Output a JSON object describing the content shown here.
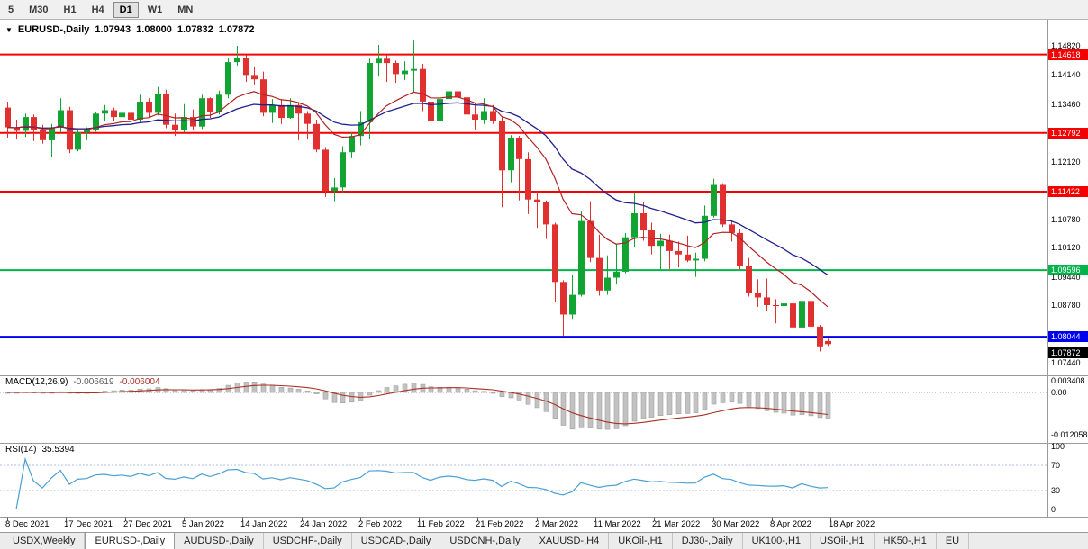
{
  "toolbar": {
    "timeframes": [
      {
        "label": "5",
        "active": false
      },
      {
        "label": "M30",
        "active": false
      },
      {
        "label": "H1",
        "active": false
      },
      {
        "label": "H4",
        "active": false
      },
      {
        "label": "D1",
        "active": true
      },
      {
        "label": "W1",
        "active": false
      },
      {
        "label": "MN",
        "active": false
      }
    ]
  },
  "chart_header": {
    "menu_icon": "▼",
    "title": "EURUSD-,Daily",
    "open": "1.07943",
    "high": "1.08000",
    "low": "1.07832",
    "close": "1.07872"
  },
  "chart_data": {
    "type": "candlestick",
    "symbol": "EURUSD-",
    "timeframe": "Daily",
    "price_range": {
      "top": 1.1505,
      "bottom": 1.0725
    },
    "price_axis": [
      {
        "text": "1.14820",
        "price": 1.1482,
        "style": "plain"
      },
      {
        "text": "1.14618",
        "price": 1.14618,
        "style": "red"
      },
      {
        "text": "1.14140",
        "price": 1.1414,
        "style": "plain"
      },
      {
        "text": "1.13460",
        "price": 1.1346,
        "style": "plain"
      },
      {
        "text": "1.12792",
        "price": 1.12792,
        "style": "red"
      },
      {
        "text": "1.12120",
        "price": 1.1212,
        "style": "plain"
      },
      {
        "text": "1.11422",
        "price": 1.11422,
        "style": "red"
      },
      {
        "text": "1.10780",
        "price": 1.1078,
        "style": "plain"
      },
      {
        "text": "1.10120",
        "price": 1.1012,
        "style": "plain"
      },
      {
        "text": "1.09596",
        "price": 1.09596,
        "style": "green"
      },
      {
        "text": "1.09440",
        "price": 1.0944,
        "style": "plain"
      },
      {
        "text": "1.08780",
        "price": 1.0878,
        "style": "plain"
      },
      {
        "text": "1.08044",
        "price": 1.08044,
        "style": "blue"
      },
      {
        "text": "1.07440",
        "price": 1.0744,
        "style": "plain"
      }
    ],
    "levels": [
      {
        "price": 1.14618,
        "color": "red"
      },
      {
        "price": 1.12792,
        "color": "red"
      },
      {
        "price": 1.11422,
        "color": "red"
      },
      {
        "price": 1.09596,
        "color": "green"
      },
      {
        "price": 1.08044,
        "color": "blue"
      }
    ],
    "current_price": {
      "text": "1.07872",
      "price": 1.07872
    },
    "moving_averages": [
      {
        "period": 12,
        "method": "ema",
        "color_key": "ma_fast"
      },
      {
        "period": 26,
        "method": "ema",
        "color_key": "ma_slow"
      }
    ],
    "date_labels": [
      "8 Dec 2021",
      "17 Dec 2021",
      "27 Dec 2021",
      "5 Jan 2022",
      "14 Jan 2022",
      "24 Jan 2022",
      "2 Feb 2022",
      "11 Feb 2022",
      "21 Feb 2022",
      "2 Mar 2022",
      "11 Mar 2022",
      "21 Mar 2022",
      "30 Mar 2022",
      "8 Apr 2022",
      "18 Apr 2022"
    ],
    "candles_ohlc": [
      [
        1.1338,
        1.1352,
        1.1268,
        1.1292
      ],
      [
        1.1292,
        1.131,
        1.1264,
        1.1284
      ],
      [
        1.1284,
        1.1324,
        1.127,
        1.1316
      ],
      [
        1.1316,
        1.1322,
        1.126,
        1.1286
      ],
      [
        1.1286,
        1.1298,
        1.1254,
        1.1262
      ],
      [
        1.1262,
        1.13,
        1.1222,
        1.1292
      ],
      [
        1.1292,
        1.136,
        1.128,
        1.1332
      ],
      [
        1.1332,
        1.134,
        1.1232,
        1.124
      ],
      [
        1.124,
        1.1288,
        1.1236,
        1.128
      ],
      [
        1.128,
        1.1292,
        1.1262,
        1.1286
      ],
      [
        1.1286,
        1.1328,
        1.1282,
        1.1324
      ],
      [
        1.1324,
        1.1344,
        1.1308,
        1.1332
      ],
      [
        1.1332,
        1.1338,
        1.1308,
        1.1316
      ],
      [
        1.1316,
        1.1332,
        1.1304,
        1.1326
      ],
      [
        1.1326,
        1.1336,
        1.1292,
        1.131
      ],
      [
        1.131,
        1.1368,
        1.1304,
        1.1352
      ],
      [
        1.1352,
        1.136,
        1.1316,
        1.1326
      ],
      [
        1.1326,
        1.1386,
        1.132,
        1.137
      ],
      [
        1.137,
        1.138,
        1.129,
        1.1298
      ],
      [
        1.1298,
        1.1324,
        1.1272,
        1.1286
      ],
      [
        1.1286,
        1.1346,
        1.128,
        1.1316
      ],
      [
        1.1316,
        1.1334,
        1.1286,
        1.1294
      ],
      [
        1.1294,
        1.1368,
        1.1288,
        1.136
      ],
      [
        1.136,
        1.1362,
        1.1314,
        1.1328
      ],
      [
        1.1328,
        1.1378,
        1.1322,
        1.1368
      ],
      [
        1.1368,
        1.1452,
        1.136,
        1.1444
      ],
      [
        1.1444,
        1.1482,
        1.1436,
        1.1454
      ],
      [
        1.1454,
        1.146,
        1.1398,
        1.1414
      ],
      [
        1.1414,
        1.1434,
        1.1392,
        1.1404
      ],
      [
        1.1404,
        1.1422,
        1.1318,
        1.1326
      ],
      [
        1.1326,
        1.1358,
        1.1302,
        1.1344
      ],
      [
        1.1344,
        1.1358,
        1.13,
        1.1314
      ],
      [
        1.1314,
        1.136,
        1.1312,
        1.1344
      ],
      [
        1.1344,
        1.1348,
        1.1262,
        1.1324
      ],
      [
        1.1324,
        1.133,
        1.1264,
        1.13
      ],
      [
        1.13,
        1.131,
        1.1234,
        1.124
      ],
      [
        1.124,
        1.1246,
        1.113,
        1.1144
      ],
      [
        1.1144,
        1.1174,
        1.112,
        1.1152
      ],
      [
        1.1152,
        1.1248,
        1.114,
        1.1234
      ],
      [
        1.1234,
        1.128,
        1.122,
        1.1272
      ],
      [
        1.1272,
        1.133,
        1.125,
        1.1304
      ],
      [
        1.1304,
        1.1452,
        1.1266,
        1.1442
      ],
      [
        1.1442,
        1.1484,
        1.141,
        1.1452
      ],
      [
        1.1452,
        1.146,
        1.1398,
        1.1442
      ],
      [
        1.1442,
        1.1448,
        1.1396,
        1.1416
      ],
      [
        1.1416,
        1.1446,
        1.1402,
        1.1424
      ],
      [
        1.1424,
        1.1494,
        1.1374,
        1.1428
      ],
      [
        1.1428,
        1.144,
        1.133,
        1.1352
      ],
      [
        1.1352,
        1.1368,
        1.128,
        1.1306
      ],
      [
        1.1306,
        1.1368,
        1.13,
        1.1358
      ],
      [
        1.1358,
        1.1396,
        1.134,
        1.1376
      ],
      [
        1.1376,
        1.1388,
        1.1324,
        1.1362
      ],
      [
        1.1362,
        1.137,
        1.1312,
        1.1322
      ],
      [
        1.1322,
        1.1348,
        1.1286,
        1.131
      ],
      [
        1.131,
        1.136,
        1.13,
        1.133
      ],
      [
        1.133,
        1.1344,
        1.13,
        1.1308
      ],
      [
        1.1308,
        1.1316,
        1.1106,
        1.1192
      ],
      [
        1.1192,
        1.1274,
        1.1164,
        1.1268
      ],
      [
        1.1268,
        1.1272,
        1.1122,
        1.1218
      ],
      [
        1.1218,
        1.1234,
        1.109,
        1.1124
      ],
      [
        1.1124,
        1.1144,
        1.1058,
        1.1118
      ],
      [
        1.1118,
        1.1122,
        1.1032,
        1.1066
      ],
      [
        1.1066,
        1.107,
        1.0886,
        1.0932
      ],
      [
        1.0932,
        1.0936,
        1.0806,
        1.0856
      ],
      [
        1.0856,
        1.0948,
        1.0846,
        1.0902
      ],
      [
        1.0902,
        1.1096,
        1.0898,
        1.1074
      ],
      [
        1.1074,
        1.112,
        1.0978,
        1.0988
      ],
      [
        1.0988,
        1.1042,
        1.09,
        1.0912
      ],
      [
        1.0912,
        1.0994,
        1.0902,
        1.0942
      ],
      [
        1.0942,
        1.102,
        1.0926,
        1.0956
      ],
      [
        1.0956,
        1.1046,
        1.0952,
        1.1036
      ],
      [
        1.1036,
        1.1138,
        1.1014,
        1.1092
      ],
      [
        1.1092,
        1.1118,
        1.1028,
        1.1052
      ],
      [
        1.1052,
        1.107,
        1.0996,
        1.1016
      ],
      [
        1.1016,
        1.1044,
        1.0962,
        1.1028
      ],
      [
        1.1028,
        1.1042,
        1.0962,
        1.1004
      ],
      [
        1.1004,
        1.1026,
        1.0966,
        1.0996
      ],
      [
        1.0996,
        1.104,
        1.0978,
        1.0982
      ],
      [
        1.0982,
        1.1,
        1.0944,
        1.0986
      ],
      [
        1.0986,
        1.111,
        1.098,
        1.1086
      ],
      [
        1.1086,
        1.1172,
        1.1082,
        1.1158
      ],
      [
        1.1158,
        1.1162,
        1.106,
        1.1066
      ],
      [
        1.1066,
        1.1076,
        1.1026,
        1.1046
      ],
      [
        1.1046,
        1.1056,
        1.096,
        1.097
      ],
      [
        1.097,
        1.0988,
        1.0898,
        1.0906
      ],
      [
        1.0906,
        1.0938,
        1.0874,
        1.0896
      ],
      [
        1.0896,
        1.094,
        1.0864,
        1.0878
      ],
      [
        1.0878,
        1.0892,
        1.0836,
        1.0876
      ],
      [
        1.0876,
        1.095,
        1.0872,
        1.0882
      ],
      [
        1.0882,
        1.0904,
        1.082,
        1.0826
      ],
      [
        1.0826,
        1.0896,
        1.0808,
        1.0888
      ],
      [
        1.0888,
        1.0894,
        1.0758,
        1.0828
      ],
      [
        1.0828,
        1.0832,
        1.077,
        1.0782
      ],
      [
        1.07943,
        1.08,
        1.07832,
        1.07872
      ]
    ],
    "indicators": {
      "macd": {
        "label": "MACD(12,26,9)",
        "value_main": "-0.006619",
        "value_signal": "-0.006004",
        "fast": 12,
        "slow": 26,
        "signal": 9,
        "axis": [
          {
            "text": "0.003408",
            "value": 0.003408
          },
          {
            "text": "0.00",
            "value": 0
          },
          {
            "text": "-0.012058",
            "value": -0.012058
          }
        ]
      },
      "rsi": {
        "label": "RSI(14)",
        "value": "35.5394",
        "period": 14,
        "levels": [
          70,
          30
        ],
        "axis": [
          {
            "text": "100",
            "value": 100
          },
          {
            "text": "70",
            "value": 70
          },
          {
            "text": "30",
            "value": 30
          },
          {
            "text": "0",
            "value": 0
          }
        ]
      }
    }
  },
  "tabs": [
    {
      "label": "USDX,Weekly",
      "active": false
    },
    {
      "label": "EURUSD-,Daily",
      "active": true
    },
    {
      "label": "AUDUSD-,Daily",
      "active": false
    },
    {
      "label": "USDCHF-,Daily",
      "active": false
    },
    {
      "label": "USDCAD-,Daily",
      "active": false
    },
    {
      "label": "USDCNH-,Daily",
      "active": false
    },
    {
      "label": "XAUUSD-,H4",
      "active": false
    },
    {
      "label": "UKOil-,H1",
      "active": false
    },
    {
      "label": "DJ30-,Daily",
      "active": false
    },
    {
      "label": "UK100-,H1",
      "active": false
    },
    {
      "label": "USOil-,H1",
      "active": false
    },
    {
      "label": "HK50-,H1",
      "active": false
    },
    {
      "label": "EU",
      "active": false
    }
  ],
  "colors": {
    "bull": "#12a433",
    "bear": "#e03030",
    "level_red": "#f40000",
    "level_green": "#00b44a",
    "level_blue": "#0000f0",
    "badge_current": "#000000",
    "ma_fast": "#b22222",
    "ma_slow": "#202090",
    "macd_hist": "#c2c2c2",
    "macd_hist_stroke": "#a0a0a0",
    "macd_signal": "#a93226",
    "rsi_line": "#4a9fd4",
    "rsi_level": "#aebee0",
    "panel_border": "#9a9a9a"
  }
}
